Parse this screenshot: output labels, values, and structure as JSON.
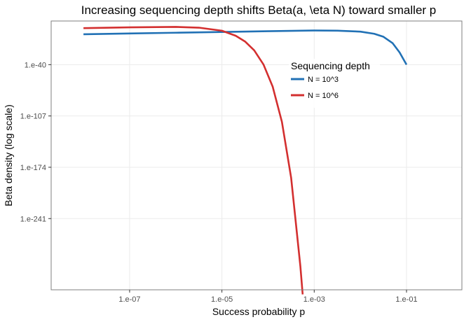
{
  "chart_data": {
    "type": "line",
    "title": "Increasing sequencing depth shifts Beta(a, \\eta N) toward smaller p",
    "xlabel": "Success probability p",
    "ylabel": "Beta density (log scale)",
    "x_scale": "log10",
    "y_scale": "log10",
    "xlim_log10": [
      -8.7,
      0.2
    ],
    "ylim_log10": [
      -334,
      17
    ],
    "x_ticks": [
      {
        "log10": -7,
        "label": "1.e-07"
      },
      {
        "log10": -5,
        "label": "1.e-05"
      },
      {
        "log10": -3,
        "label": "1.e-03"
      },
      {
        "log10": -1,
        "label": "1.e-01"
      }
    ],
    "y_ticks": [
      {
        "log10": -40,
        "label": "1.e-40"
      },
      {
        "log10": -107,
        "label": "1.e-107"
      },
      {
        "log10": -174,
        "label": "1.e-174"
      },
      {
        "log10": -241,
        "label": "1.e-241"
      }
    ],
    "grid": true,
    "legend": {
      "title": "Sequencing depth",
      "position": "top-right (inside plot)"
    },
    "series": [
      {
        "name": "N = 10^3",
        "color": "#2171b5",
        "points": [
          {
            "log10_x": -8.0,
            "log10_y": -0.3
          },
          {
            "log10_x": -7.0,
            "log10_y": 0.7
          },
          {
            "log10_x": -6.0,
            "log10_y": 1.7
          },
          {
            "log10_x": -5.0,
            "log10_y": 2.7
          },
          {
            "log10_x": -4.0,
            "log10_y": 3.7
          },
          {
            "log10_x": -3.0,
            "log10_y": 4.6
          },
          {
            "log10_x": -2.5,
            "log10_y": 4.4
          },
          {
            "log10_x": -2.0,
            "log10_y": 3.1
          },
          {
            "log10_x": -1.7,
            "log10_y": 0.3
          },
          {
            "log10_x": -1.5,
            "log10_y": -3.6
          },
          {
            "log10_x": -1.3,
            "log10_y": -12
          },
          {
            "log10_x": -1.15,
            "log10_y": -24
          },
          {
            "log10_x": -1.0,
            "log10_y": -40
          }
        ]
      },
      {
        "name": "N = 10^6",
        "color": "#d32f2f",
        "points": [
          {
            "log10_x": -8.0,
            "log10_y": 7.7
          },
          {
            "log10_x": -7.0,
            "log10_y": 8.7
          },
          {
            "log10_x": -6.0,
            "log10_y": 9.3
          },
          {
            "log10_x": -5.5,
            "log10_y": 8.3
          },
          {
            "log10_x": -5.0,
            "log10_y": 4.3
          },
          {
            "log10_x": -4.7,
            "log10_y": -2.3
          },
          {
            "log10_x": -4.5,
            "log10_y": -9.7
          },
          {
            "log10_x": -4.3,
            "log10_y": -21.3
          },
          {
            "log10_x": -4.1,
            "log10_y": -39.7
          },
          {
            "log10_x": -3.9,
            "log10_y": -68.7
          },
          {
            "log10_x": -3.7,
            "log10_y": -114.7
          },
          {
            "log10_x": -3.5,
            "log10_y": -187.7
          },
          {
            "log10_x": -3.3,
            "log10_y": -303.3
          },
          {
            "log10_x": -3.25,
            "log10_y": -340
          }
        ]
      }
    ]
  }
}
